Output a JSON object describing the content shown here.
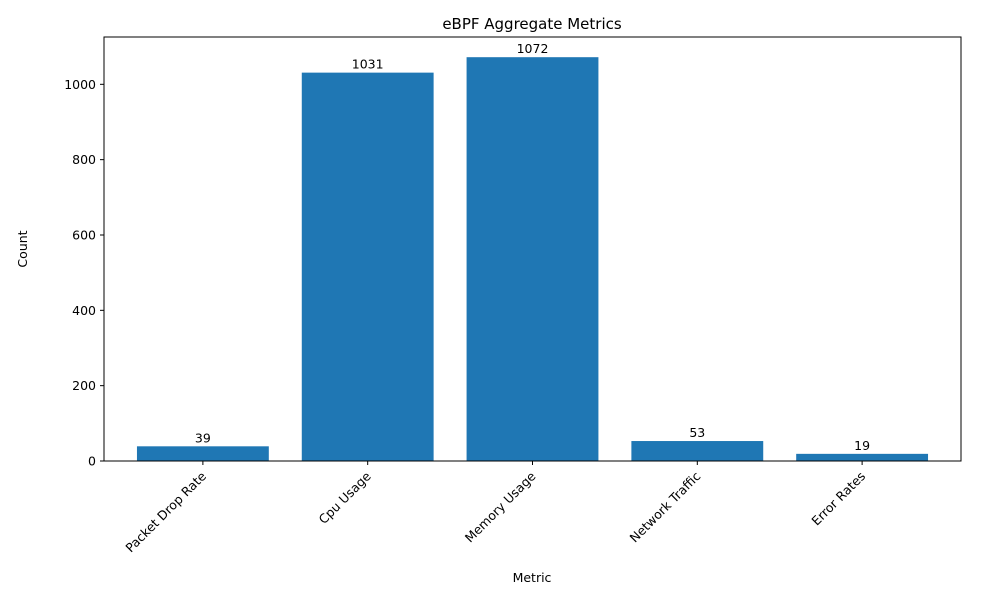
{
  "chart_data": {
    "type": "bar",
    "title": "eBPF Aggregate Metrics",
    "xlabel": "Metric",
    "ylabel": "Count",
    "categories": [
      "Packet Drop Rate",
      "Cpu Usage",
      "Memory Usage",
      "Network Traffic",
      "Error Rates"
    ],
    "values": [
      39,
      1031,
      1072,
      53,
      19
    ],
    "ylim": [
      0,
      1125.6
    ],
    "yticks": [
      0,
      200,
      400,
      600,
      800,
      1000
    ],
    "grid": false,
    "bar_color": "#1f77b4",
    "data_labels": true
  }
}
